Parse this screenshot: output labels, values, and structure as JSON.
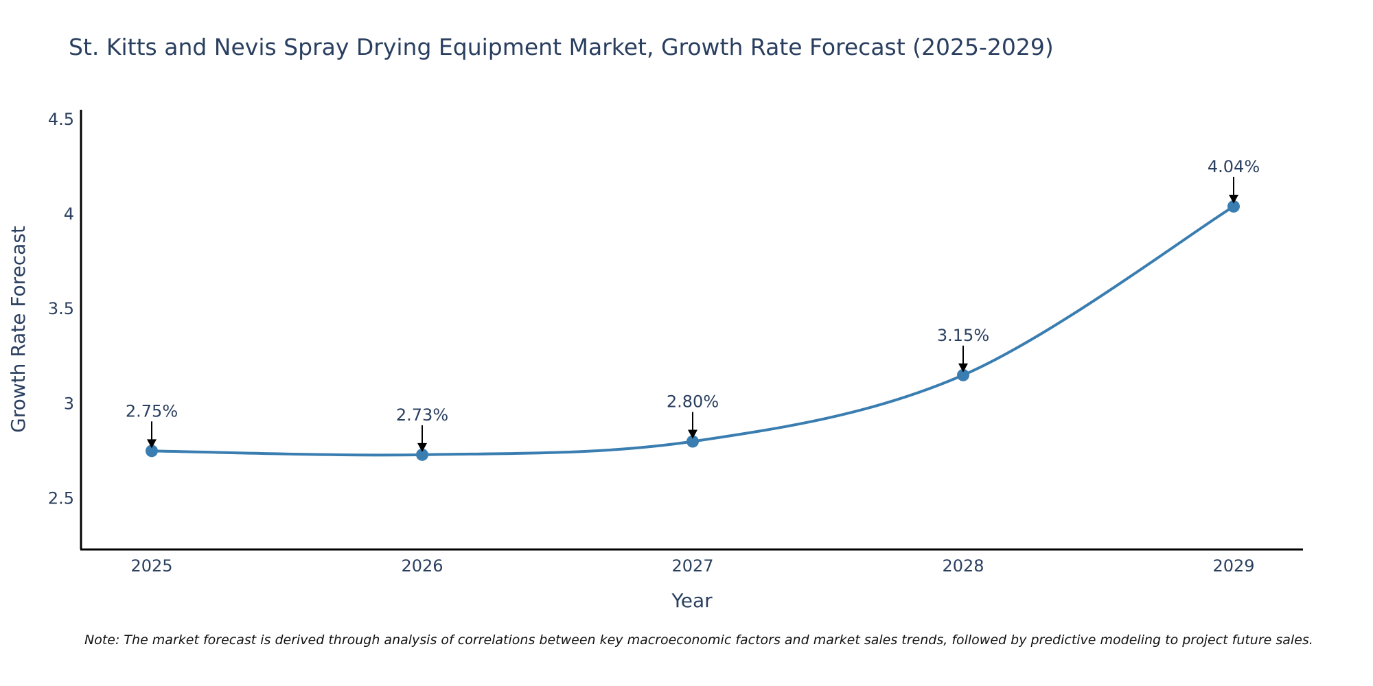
{
  "chart_data": {
    "type": "line",
    "title": "St. Kitts and Nevis Spray Drying Equipment Market, Growth Rate Forecast (2025-2029)",
    "xlabel": "Year",
    "ylabel": "Growth Rate Forecast",
    "categories": [
      "2025",
      "2026",
      "2027",
      "2028",
      "2029"
    ],
    "series": [
      {
        "name": "Growth Rate Forecast",
        "values": [
          2.75,
          2.73,
          2.8,
          3.15,
          4.04
        ],
        "color": "#3a7db0"
      }
    ],
    "annotations": [
      "2.75%",
      "2.73%",
      "2.80%",
      "3.15%",
      "4.04%"
    ],
    "yticks": [
      "2.5",
      "3",
      "3.5",
      "4",
      "4.5"
    ],
    "ytick_values": [
      2.5,
      3,
      3.5,
      4,
      4.5
    ],
    "ylim": [
      2.23,
      4.55
    ],
    "grid": false,
    "line_shape": "spline",
    "note": "Note: The market forecast is derived through analysis of correlations between key macroeconomic factors and market sales trends, followed by predictive modeling to project future sales."
  }
}
